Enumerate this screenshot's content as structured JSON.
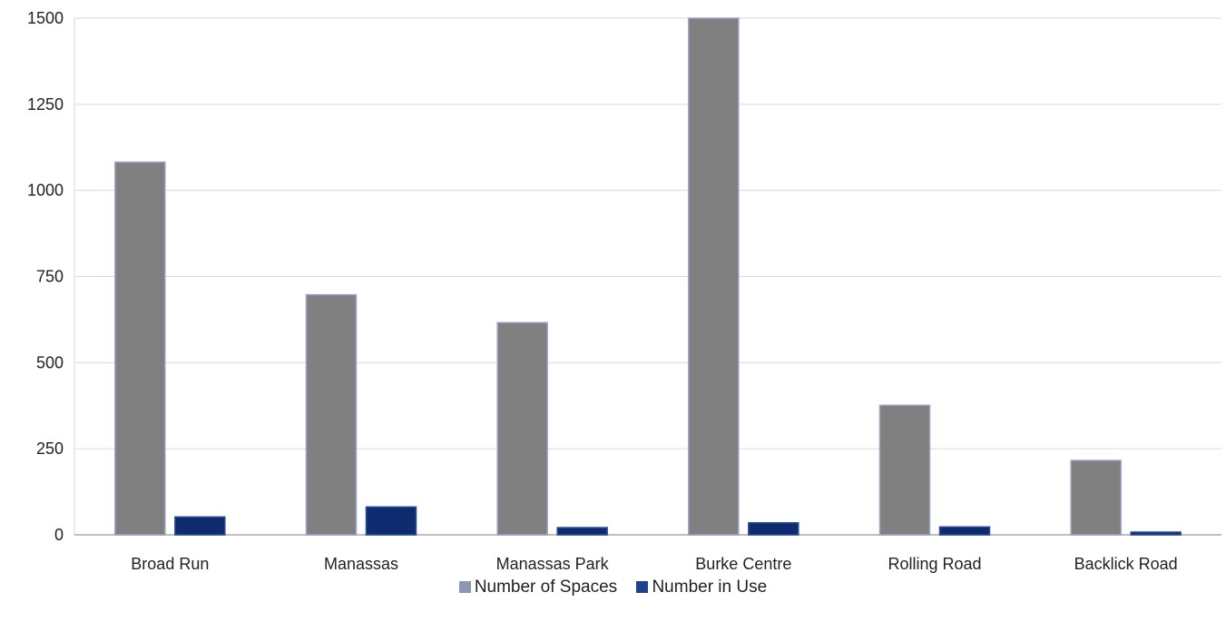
{
  "chart_data": {
    "type": "bar",
    "title": "",
    "xlabel": "",
    "ylabel": "",
    "categories": [
      "Broad Run",
      "Manassas",
      "Manassas Park",
      "Burke Centre",
      "Rolling Road",
      "Backlick Road"
    ],
    "series": [
      {
        "name": "Number of Spaces",
        "values": [
          1082,
          697,
          616,
          1500,
          376,
          216
        ],
        "color": "#808080",
        "legend_color": "#8d97b5"
      },
      {
        "name": "Number in Use",
        "values": [
          52,
          81,
          21,
          35,
          23,
          8
        ],
        "color": "#0d2b6e",
        "legend_color": "#1f3f8f"
      }
    ],
    "ylim": [
      0,
      1500
    ],
    "yticks": [
      0,
      250,
      500,
      750,
      1000,
      1250,
      1500
    ],
    "grid": true,
    "legend_position": "bottom"
  }
}
